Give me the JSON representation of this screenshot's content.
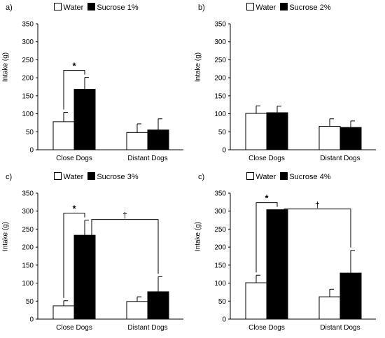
{
  "chart_data": [
    {
      "type": "bar",
      "panel_label": "a)",
      "categories": [
        "Close Dogs",
        "Distant Dogs"
      ],
      "series": [
        {
          "name": "Water",
          "values": [
            78,
            48
          ],
          "errors": [
            26,
            24
          ],
          "color": "#ffffff"
        },
        {
          "name": "Sucrose 1%",
          "values": [
            168,
            55
          ],
          "errors": [
            33,
            31
          ],
          "color": "#000000"
        }
      ],
      "ylabel": "Intake (g)",
      "ylim": [
        0,
        350
      ],
      "yticks": [
        0,
        50,
        100,
        150,
        200,
        250,
        300,
        350
      ],
      "grid": false,
      "legend": "top",
      "annotations": [
        {
          "type": "bracket",
          "symbol": "*",
          "between": "Water vs Sucrose, Close Dogs"
        }
      ]
    },
    {
      "type": "bar",
      "panel_label": "b)",
      "categories": [
        "Close Dogs",
        "Distant Dogs"
      ],
      "series": [
        {
          "name": "Water",
          "values": [
            101,
            65
          ],
          "errors": [
            21,
            21
          ],
          "color": "#ffffff"
        },
        {
          "name": "Sucrose 2%",
          "values": [
            103,
            62
          ],
          "errors": [
            18,
            18
          ],
          "color": "#000000"
        }
      ],
      "ylabel": "Intake (g)",
      "ylim": [
        0,
        350
      ],
      "yticks": [
        0,
        50,
        100,
        150,
        200,
        250,
        300,
        350
      ],
      "grid": false,
      "legend": "top",
      "annotations": []
    },
    {
      "type": "bar",
      "panel_label": "c)",
      "categories": [
        "Close Dogs",
        "Distant Dogs"
      ],
      "series": [
        {
          "name": "Water",
          "values": [
            37,
            49
          ],
          "errors": [
            14,
            13
          ],
          "color": "#ffffff"
        },
        {
          "name": "Sucrose 3%",
          "values": [
            233,
            76
          ],
          "errors": [
            42,
            42
          ],
          "color": "#000000"
        }
      ],
      "ylabel": "Intake (g)",
      "ylim": [
        0,
        350
      ],
      "yticks": [
        0,
        50,
        100,
        150,
        200,
        250,
        300,
        350
      ],
      "grid": false,
      "legend": "top",
      "annotations": [
        {
          "type": "bracket",
          "symbol": "*",
          "between": "Water vs Sucrose, Close Dogs"
        },
        {
          "type": "bracket",
          "symbol": "†",
          "between": "Sucrose, Close Dogs vs Distant Dogs"
        }
      ]
    },
    {
      "type": "bar",
      "panel_label": "c)",
      "categories": [
        "Close Dogs",
        "Distant Dogs"
      ],
      "series": [
        {
          "name": "Water",
          "values": [
            101,
            62
          ],
          "errors": [
            21,
            21
          ],
          "color": "#ffffff"
        },
        {
          "name": "Sucrose 4%",
          "values": [
            304,
            128
          ],
          "errors": [
            0,
            63
          ],
          "color": "#000000"
        }
      ],
      "ylabel": "Intake (g)",
      "ylim": [
        0,
        350
      ],
      "yticks": [
        0,
        50,
        100,
        150,
        200,
        250,
        300,
        350
      ],
      "grid": false,
      "legend": "top",
      "annotations": [
        {
          "type": "bracket",
          "symbol": "*",
          "between": "Water vs Sucrose, Close Dogs"
        },
        {
          "type": "bracket",
          "symbol": "†",
          "between": "Sucrose, Close Dogs vs Distant Dogs"
        }
      ]
    }
  ]
}
